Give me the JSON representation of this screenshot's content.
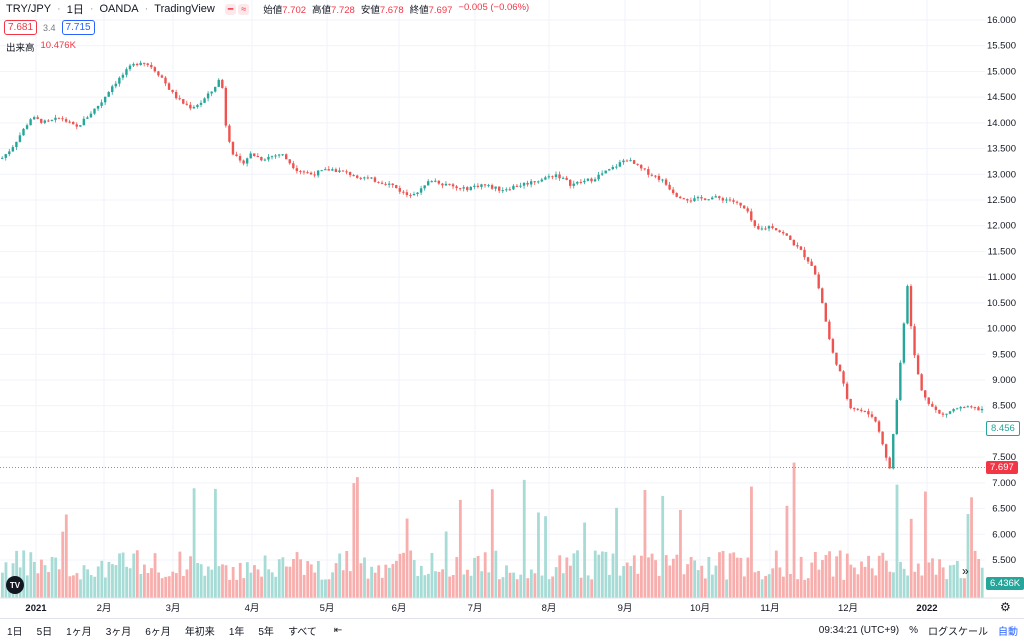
{
  "header": {
    "symbol": "TRY/JPY",
    "interval": "1日",
    "broker": "OANDA",
    "platform": "TradingView",
    "open_label": "始値",
    "open_value": "7.702",
    "high_label": "高値",
    "high_value": "7.728",
    "low_label": "安値",
    "low_value": "7.678",
    "close_label": "終値",
    "close_value": "7.697",
    "change_value": "−0.005 (−0.06%)"
  },
  "quote": {
    "bid": "7.681",
    "spread": "3.4",
    "ask": "7.715"
  },
  "volume_label": "出来高",
  "volume_value": "10.476K",
  "right_tags": {
    "last_price": "7.697",
    "ma_value": "8.456",
    "volume_last": "6.436K"
  },
  "colors": {
    "up": "#26a69a",
    "down": "#ef5350",
    "vol_up": "#a7dbd6",
    "vol_down": "#f7aeac",
    "grid": "#f0f3fa",
    "accent": "#2962ff"
  },
  "toolbar": {
    "timeframes": [
      "1日",
      "5日",
      "1ヶ月",
      "3ヶ月",
      "6ヶ月",
      "年初来",
      "1年",
      "5年",
      "すべて"
    ],
    "time": "09:34:21 (UTC+9)",
    "percent": "%",
    "log": "ログスケール",
    "auto": "自動"
  },
  "chart_data": {
    "type": "candlestick",
    "y_ticks": [
      "16.000",
      "15.500",
      "15.000",
      "14.500",
      "14.000",
      "13.500",
      "13.000",
      "12.500",
      "12.000",
      "11.500",
      "11.000",
      "10.500",
      "10.000",
      "9.500",
      "9.000",
      "8.500",
      "8.000",
      "7.500",
      "7.000",
      "6.500",
      "6.000",
      "5.500"
    ],
    "ylim": [
      5.5,
      16.0
    ],
    "x_ticks": [
      "2021",
      "2月",
      "3月",
      "4月",
      "5月",
      "6月",
      "7月",
      "8月",
      "9月",
      "10月",
      "11月",
      "12月",
      "2022"
    ],
    "close_path": [
      [
        0,
        13.3
      ],
      [
        10,
        13.5
      ],
      [
        20,
        13.8
      ],
      [
        30,
        14.1
      ],
      [
        45,
        14.0
      ],
      [
        60,
        14.1
      ],
      [
        75,
        13.9
      ],
      [
        90,
        14.2
      ],
      [
        100,
        14.4
      ],
      [
        110,
        14.7
      ],
      [
        120,
        14.9
      ],
      [
        130,
        15.1
      ],
      [
        140,
        15.2
      ],
      [
        150,
        15.1
      ],
      [
        160,
        14.9
      ],
      [
        170,
        14.6
      ],
      [
        180,
        14.4
      ],
      [
        190,
        14.3
      ],
      [
        200,
        14.4
      ],
      [
        210,
        14.6
      ],
      [
        220,
        14.9
      ],
      [
        225,
        13.9
      ],
      [
        232,
        13.4
      ],
      [
        240,
        13.2
      ],
      [
        250,
        13.4
      ],
      [
        260,
        13.3
      ],
      [
        280,
        13.4
      ],
      [
        295,
        13.1
      ],
      [
        310,
        13.0
      ],
      [
        330,
        13.1
      ],
      [
        350,
        13.0
      ],
      [
        370,
        12.9
      ],
      [
        390,
        12.8
      ],
      [
        405,
        12.6
      ],
      [
        420,
        12.7
      ],
      [
        430,
        12.9
      ],
      [
        445,
        12.8
      ],
      [
        460,
        12.7
      ],
      [
        480,
        12.8
      ],
      [
        500,
        12.7
      ],
      [
        520,
        12.8
      ],
      [
        540,
        12.9
      ],
      [
        555,
        13.0
      ],
      [
        570,
        12.8
      ],
      [
        590,
        12.9
      ],
      [
        610,
        13.1
      ],
      [
        625,
        13.3
      ],
      [
        640,
        13.1
      ],
      [
        660,
        12.9
      ],
      [
        675,
        12.6
      ],
      [
        690,
        12.5
      ],
      [
        710,
        12.55
      ],
      [
        730,
        12.5
      ],
      [
        745,
        12.3
      ],
      [
        755,
        11.9
      ],
      [
        770,
        12.0
      ],
      [
        785,
        11.8
      ],
      [
        800,
        11.5
      ],
      [
        812,
        11.2
      ],
      [
        820,
        10.6
      ],
      [
        830,
        9.6
      ],
      [
        838,
        9.2
      ],
      [
        848,
        8.5
      ],
      [
        860,
        8.4
      ],
      [
        872,
        8.3
      ],
      [
        880,
        7.9
      ],
      [
        888,
        7.2
      ],
      [
        894,
        8.3
      ],
      [
        900,
        9.5
      ],
      [
        906,
        10.9
      ],
      [
        912,
        9.6
      ],
      [
        920,
        8.8
      ],
      [
        930,
        8.5
      ],
      [
        940,
        8.3
      ],
      [
        955,
        8.45
      ],
      [
        970,
        8.45
      ],
      [
        985,
        8.42
      ]
    ],
    "last_price": 7.697
  }
}
